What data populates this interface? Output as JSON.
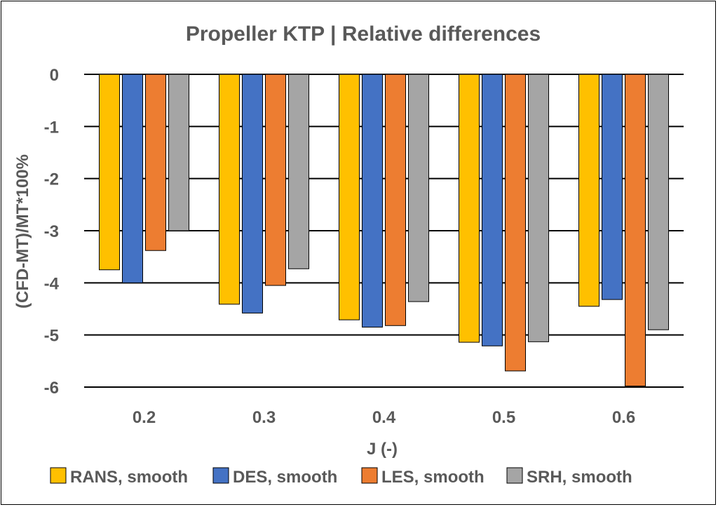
{
  "chart_data": {
    "type": "bar",
    "title": "Propeller KTP | Relative differences",
    "xlabel": "J (-)",
    "ylabel": "(CFD-MT)/MT*100%",
    "categories": [
      "0.2",
      "0.3",
      "0.4",
      "0.5",
      "0.6"
    ],
    "ylim": [
      -6,
      0
    ],
    "yticks": [
      "0",
      "-1",
      "-2",
      "-3",
      "-4",
      "-5",
      "-6"
    ],
    "grid": true,
    "legend_position": "bottom",
    "series": [
      {
        "name": "RANS, smooth",
        "color": "#FFC000",
        "values": [
          -3.75,
          -4.41,
          -4.71,
          -5.14,
          -4.45
        ]
      },
      {
        "name": "DES, smooth",
        "color": "#4472C4",
        "values": [
          -4.0,
          -4.58,
          -4.85,
          -5.21,
          -4.32
        ]
      },
      {
        "name": "LES, smooth",
        "color": "#ED7D31",
        "values": [
          -3.38,
          -4.05,
          -4.82,
          -5.69,
          -5.98
        ]
      },
      {
        "name": "SRH, smooth",
        "color": "#A5A5A5",
        "values": [
          -3.0,
          -3.73,
          -4.36,
          -5.13,
          -4.9
        ]
      }
    ]
  }
}
